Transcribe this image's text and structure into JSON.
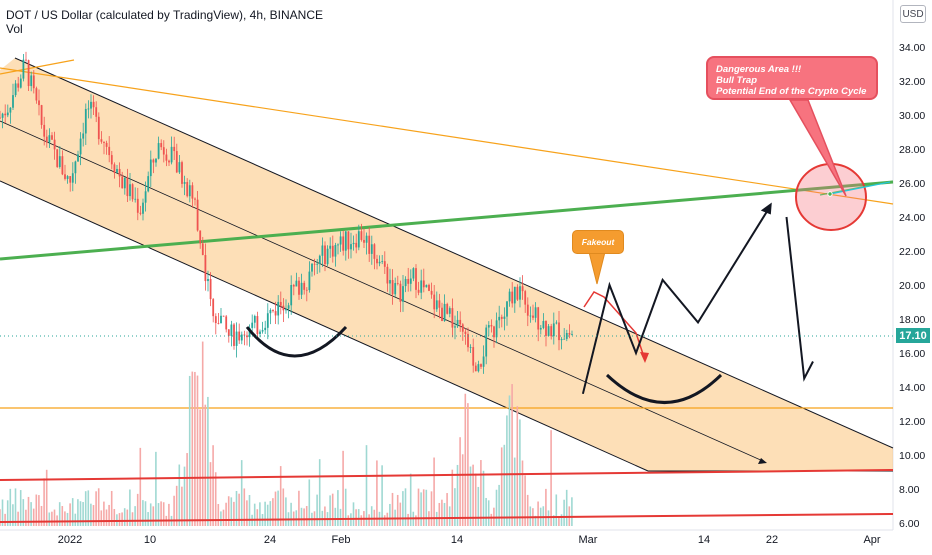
{
  "header": {
    "title": "DOT / US Dollar (calculated by TradingView), 4h, BINANCE",
    "volume_label": "Vol",
    "currency": "USD"
  },
  "last_price": "17.10",
  "colors": {
    "up": "#26a69a",
    "down": "#ef5350",
    "channel_fill": "#fbc47c",
    "green_line": "#4caf50",
    "orange_line": "#f7a21b",
    "red_line": "#e53935",
    "annotation_red": "#f7737f",
    "annotation_orange": "#f59c2f"
  },
  "annotations": {
    "danger": [
      "Dangerous Area !!!",
      "Bull Trap",
      "Potential End of the Crypto Cycle"
    ],
    "fakeout": "Fakeout"
  },
  "chart_data": {
    "type": "candlestick",
    "price_axis": {
      "ticks": [
        "34.00",
        "32.00",
        "30.00",
        "28.00",
        "26.00",
        "24.00",
        "22.00",
        "20.00",
        "18.00",
        "16.00",
        "14.00",
        "12.00",
        "10.00",
        "8.00",
        "6.00"
      ],
      "ylim": [
        6,
        35
      ],
      "scale": "linear"
    },
    "time_axis": {
      "ticks": [
        "2022",
        "10",
        "24",
        "Feb",
        "14",
        "Mar",
        "14",
        "22",
        "Apr"
      ]
    },
    "price_path": [
      [
        "2022-01-01",
        29.0
      ],
      [
        "2022-01-03",
        30.5
      ],
      [
        "2022-01-05",
        33.0
      ],
      [
        "2022-01-07",
        29.0
      ],
      [
        "2022-01-10",
        26.0
      ],
      [
        "2022-01-12",
        30.5
      ],
      [
        "2022-01-14",
        28.5
      ],
      [
        "2022-01-16",
        26.0
      ],
      [
        "2022-01-18",
        24.5
      ],
      [
        "2022-01-19",
        26.5
      ],
      [
        "2022-01-20",
        28.2
      ],
      [
        "2022-01-21",
        28.0
      ],
      [
        "2022-01-22",
        27.0
      ],
      [
        "2022-01-24",
        25.0
      ],
      [
        "2022-01-25",
        22.0
      ],
      [
        "2022-01-26",
        18.5
      ],
      [
        "2022-01-28",
        17.0
      ],
      [
        "2022-01-31",
        17.5
      ],
      [
        "2022-02-02",
        18.5
      ],
      [
        "2022-02-04",
        19.5
      ],
      [
        "2022-02-06",
        20.5
      ],
      [
        "2022-02-08",
        22.0
      ],
      [
        "2022-02-10",
        22.5
      ],
      [
        "2022-02-12",
        23.0
      ],
      [
        "2022-02-14",
        21.5
      ],
      [
        "2022-02-16",
        19.5
      ],
      [
        "2022-02-18",
        20.5
      ],
      [
        "2022-02-20",
        19.0
      ],
      [
        "2022-02-22",
        18.0
      ],
      [
        "2022-02-24",
        16.5
      ],
      [
        "2022-02-25",
        14.2
      ],
      [
        "2022-02-26",
        16.8
      ],
      [
        "2022-02-28",
        18.0
      ],
      [
        "2022-03-01",
        19.5
      ],
      [
        "2022-03-02",
        19.8
      ],
      [
        "2022-03-03",
        18.5
      ],
      [
        "2022-03-05",
        17.5
      ],
      [
        "2022-03-07",
        17.2
      ],
      [
        "2022-03-08",
        17.1
      ]
    ],
    "volume": {
      "peak_dates": [
        "2022-01-24",
        "2022-01-25",
        "2022-02-24",
        "2022-03-01"
      ]
    },
    "drawings": {
      "horizontal_levels": [
        12.8
      ],
      "projection": [
        [
          "2022-03-09",
          13.6
        ],
        [
          "2022-03-12",
          20.0
        ],
        [
          "2022-03-15",
          16.0
        ],
        [
          "2022-03-18",
          20.3
        ],
        [
          "2022-03-22",
          17.8
        ],
        [
          "2022-03-30",
          24.5
        ]
      ],
      "projection_after": [
        [
          "2022-04-01",
          24.0
        ],
        [
          "2022-04-03",
          14.5
        ],
        [
          "2022-04-04",
          15.5
        ]
      ]
    },
    "grid": false,
    "legend": "none"
  }
}
